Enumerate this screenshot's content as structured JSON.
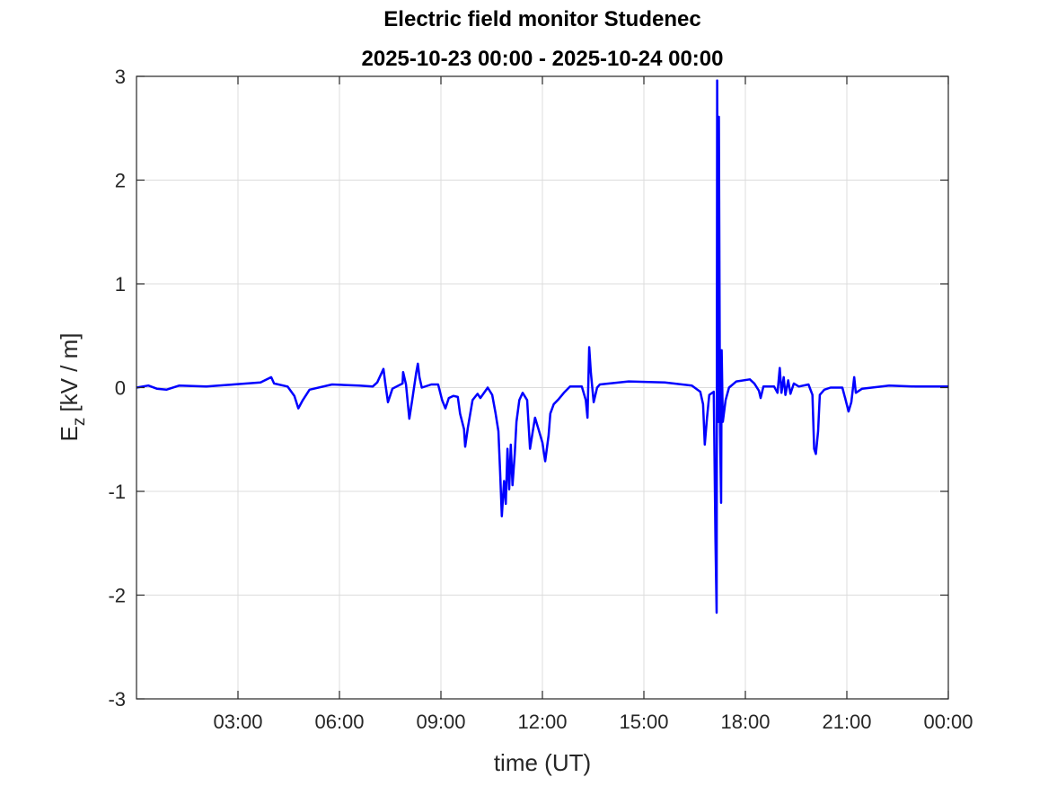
{
  "chart_data": {
    "type": "line",
    "title": [
      "Electric field monitor Studenec",
      "2025-10-23 00:00 - 2025-10-24 00:00"
    ],
    "xlabel": "time (UT)",
    "ylabel": {
      "symbol": "E",
      "subscript": "z",
      "units": "[kV / m]"
    },
    "xlim": [
      "00:00",
      "24:00"
    ],
    "ylim": [
      -3,
      3
    ],
    "xticks": [
      {
        "value": "03:00",
        "label": "03:00"
      },
      {
        "value": "06:00",
        "label": "06:00"
      },
      {
        "value": "09:00",
        "label": "09:00"
      },
      {
        "value": "12:00",
        "label": "12:00"
      },
      {
        "value": "15:00",
        "label": "15:00"
      },
      {
        "value": "18:00",
        "label": "18:00"
      },
      {
        "value": "21:00",
        "label": "21:00"
      },
      {
        "value": "24:00",
        "label": "00:00"
      }
    ],
    "yticks": [
      -3,
      -2,
      -1,
      0,
      1,
      2,
      3
    ],
    "grid": true,
    "color": "#0000ff",
    "series": [
      {
        "x": [
          "00:00",
          "00:21",
          "00:36",
          "00:53",
          "01:16",
          "02:04",
          "02:52",
          "03:40",
          "03:59",
          "04:04",
          "04:28",
          "04:40",
          "04:47",
          "04:55",
          "05:07",
          "05:47",
          "06:35",
          "06:59",
          "07:07",
          "07:18",
          "07:21",
          "07:26",
          "07:34",
          "07:52",
          "07:53",
          "07:58",
          "08:04",
          "08:09",
          "08:16",
          "08:19",
          "08:22",
          "08:26",
          "08:43",
          "08:55",
          "09:02",
          "09:08",
          "09:14",
          "09:22",
          "09:30",
          "09:34",
          "09:41",
          "09:43",
          "09:48",
          "09:56",
          "10:05",
          "10:10",
          "10:23",
          "10:31",
          "10:37",
          "10:42",
          "10:45",
          "10:48",
          "10:52",
          "10:55",
          "10:58",
          "11:01",
          "11:04",
          "11:07",
          "11:11",
          "11:14",
          "11:19",
          "11:25",
          "11:33",
          "11:38",
          "11:43",
          "11:47",
          "11:53",
          "12:00",
          "12:05",
          "12:11",
          "12:14",
          "12:20",
          "12:29",
          "12:38",
          "12:49",
          "13:10",
          "13:17",
          "13:20",
          "13:23",
          "13:26",
          "13:31",
          "13:37",
          "13:42",
          "14:33",
          "15:37",
          "16:25",
          "16:40",
          "16:45",
          "16:48",
          "16:52",
          "16:56",
          "17:04",
          "17:07",
          "17:09",
          "17:10",
          "17:12",
          "17:13",
          "17:15",
          "17:17",
          "17:18",
          "17:20",
          "17:25",
          "17:31",
          "17:44",
          "18:08",
          "18:16",
          "18:24",
          "18:27",
          "18:32",
          "18:51",
          "18:57",
          "19:01",
          "19:04",
          "19:08",
          "19:11",
          "19:16",
          "19:20",
          "19:26",
          "19:35",
          "19:52",
          "19:59",
          "20:02",
          "20:05",
          "20:09",
          "20:12",
          "20:20",
          "20:31",
          "20:52",
          "20:58",
          "21:03",
          "21:08",
          "21:13",
          "21:16",
          "21:27",
          "22:15",
          "23:02",
          "24:00"
        ],
        "y": [
          0.0,
          0.02,
          -0.01,
          -0.02,
          0.02,
          0.01,
          0.03,
          0.05,
          0.1,
          0.04,
          0.01,
          -0.08,
          -0.2,
          -0.12,
          -0.02,
          0.03,
          0.02,
          0.01,
          0.05,
          0.18,
          0.05,
          -0.14,
          -0.01,
          0.04,
          0.15,
          0.03,
          -0.3,
          -0.12,
          0.14,
          0.23,
          0.1,
          0.0,
          0.03,
          0.03,
          -0.12,
          -0.2,
          -0.1,
          -0.08,
          -0.09,
          -0.25,
          -0.4,
          -0.57,
          -0.38,
          -0.12,
          -0.06,
          -0.1,
          0.0,
          -0.07,
          -0.25,
          -0.42,
          -0.81,
          -1.24,
          -0.9,
          -1.12,
          -0.59,
          -0.98,
          -0.55,
          -0.94,
          -0.64,
          -0.33,
          -0.12,
          -0.05,
          -0.12,
          -0.59,
          -0.42,
          -0.29,
          -0.4,
          -0.53,
          -0.71,
          -0.46,
          -0.25,
          -0.16,
          -0.11,
          -0.05,
          0.01,
          0.01,
          -0.12,
          -0.29,
          0.39,
          0.14,
          -0.14,
          0.0,
          0.03,
          0.06,
          0.05,
          0.02,
          -0.04,
          -0.16,
          -0.55,
          -0.29,
          -0.07,
          -0.04,
          -1.46,
          -2.17,
          2.96,
          -0.33,
          2.61,
          -0.42,
          -1.11,
          0.36,
          -0.33,
          -0.12,
          0.0,
          0.06,
          0.08,
          0.04,
          -0.03,
          -0.1,
          0.01,
          0.01,
          -0.05,
          0.19,
          -0.05,
          0.1,
          -0.07,
          0.07,
          -0.06,
          0.04,
          0.01,
          0.03,
          -0.07,
          -0.59,
          -0.64,
          -0.42,
          -0.07,
          -0.02,
          0.0,
          0.0,
          -0.12,
          -0.23,
          -0.14,
          0.1,
          -0.05,
          -0.01,
          0.02,
          0.01,
          0.01
        ]
      }
    ]
  }
}
